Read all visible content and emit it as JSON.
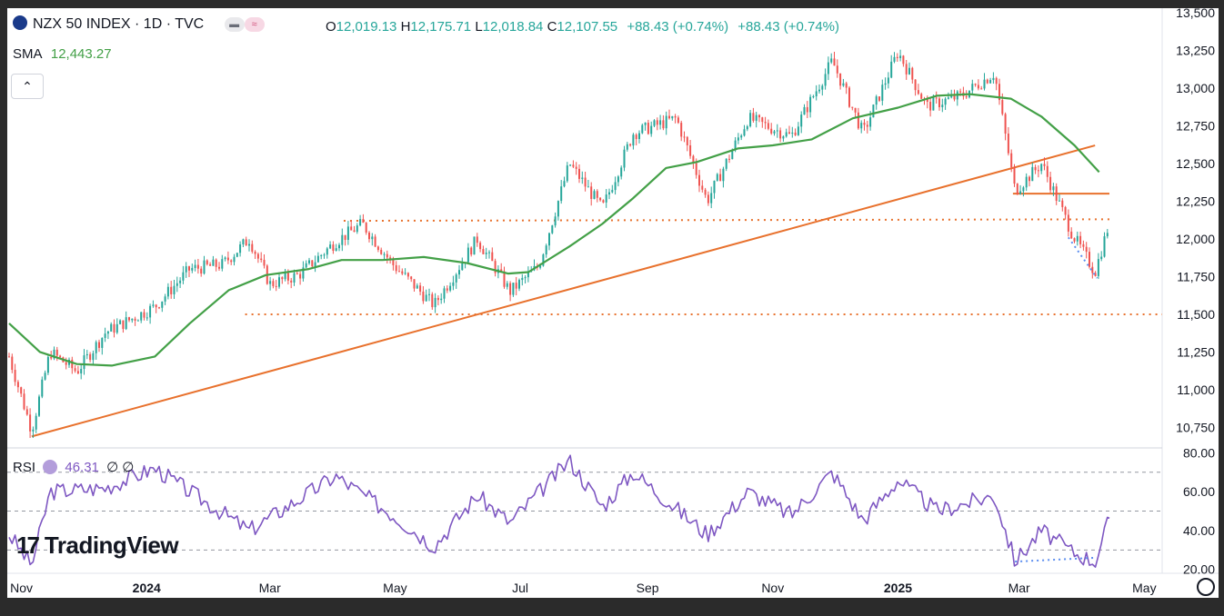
{
  "header": {
    "symbol": "NZX 50 INDEX · 1D · TVC",
    "open_label": "O",
    "open": "12,019.13",
    "high_label": "H",
    "high": "12,175.71",
    "low_label": "L",
    "low": "12,018.84",
    "close_label": "C",
    "close": "12,107.55",
    "change": "+88.43 (+0.74%)",
    "change2": "+88.43 (+0.74%)",
    "sma_label": "SMA",
    "sma_value": "12,443.27",
    "rsi_label": "RSI",
    "rsi_value": "46.31",
    "rsi_extra": "∅ ∅",
    "collapse_glyph": "⌃"
  },
  "logo": {
    "text": "TradingView",
    "mark": "17"
  },
  "colors": {
    "up": "#26a69a",
    "down": "#ef5350",
    "sma": "#43a047",
    "trend": "#e8712d",
    "rsi": "#7e57c2",
    "divergence": "#5b8def"
  },
  "chart_data": [
    {
      "type": "candlestick",
      "title": "NZX 50 INDEX · 1D · TVC",
      "x_ticks": [
        "Nov",
        "2024",
        "Mar",
        "May",
        "Jul",
        "Sep",
        "Nov",
        "2025",
        "Mar",
        "May"
      ],
      "y_ticks": [
        "10,750",
        "11,000",
        "11,250",
        "11,500",
        "11,750",
        "12,000",
        "12,250",
        "12,500",
        "12,750",
        "13,000",
        "13,250",
        "13,500"
      ],
      "ylim": [
        10620,
        13530
      ],
      "series": [
        {
          "name": "SMA",
          "indicator": "SMA",
          "values": [
            {
              "x": "2023-10-26",
              "y": 11440
            },
            {
              "x": "2023-11-10",
              "y": 11250
            },
            {
              "x": "2023-11-28",
              "y": 11170
            },
            {
              "x": "2023-12-15",
              "y": 11160
            },
            {
              "x": "2024-01-05",
              "y": 11220
            },
            {
              "x": "2024-01-22",
              "y": 11440
            },
            {
              "x": "2024-02-10",
              "y": 11660
            },
            {
              "x": "2024-02-28",
              "y": 11760
            },
            {
              "x": "2024-03-20",
              "y": 11800
            },
            {
              "x": "2024-04-05",
              "y": 11860
            },
            {
              "x": "2024-04-25",
              "y": 11860
            },
            {
              "x": "2024-05-15",
              "y": 11880
            },
            {
              "x": "2024-06-05",
              "y": 11840
            },
            {
              "x": "2024-06-25",
              "y": 11770
            },
            {
              "x": "2024-07-05",
              "y": 11780
            },
            {
              "x": "2024-07-25",
              "y": 11950
            },
            {
              "x": "2024-08-10",
              "y": 12100
            },
            {
              "x": "2024-08-25",
              "y": 12270
            },
            {
              "x": "2024-09-10",
              "y": 12470
            },
            {
              "x": "2024-09-25",
              "y": 12510
            },
            {
              "x": "2024-10-15",
              "y": 12600
            },
            {
              "x": "2024-11-01",
              "y": 12620
            },
            {
              "x": "2024-11-20",
              "y": 12660
            },
            {
              "x": "2024-12-10",
              "y": 12800
            },
            {
              "x": "2025-01-01",
              "y": 12870
            },
            {
              "x": "2025-01-20",
              "y": 12950
            },
            {
              "x": "2025-02-05",
              "y": 12960
            },
            {
              "x": "2025-02-25",
              "y": 12930
            },
            {
              "x": "2025-03-12",
              "y": 12810
            },
            {
              "x": "2025-03-28",
              "y": 12620
            },
            {
              "x": "2025-04-09",
              "y": 12443
            }
          ]
        },
        {
          "name": "Close",
          "values": [
            {
              "x": "2023-10-26",
              "y": 11220
            },
            {
              "x": "2023-11-06",
              "y": 10730
            },
            {
              "x": "2023-11-15",
              "y": 11250
            },
            {
              "x": "2023-11-28",
              "y": 11120
            },
            {
              "x": "2023-12-12",
              "y": 11380
            },
            {
              "x": "2024-01-05",
              "y": 11550
            },
            {
              "x": "2024-01-22",
              "y": 11800
            },
            {
              "x": "2024-02-07",
              "y": 11830
            },
            {
              "x": "2024-02-20",
              "y": 12000
            },
            {
              "x": "2024-03-01",
              "y": 11700
            },
            {
              "x": "2024-03-15",
              "y": 11760
            },
            {
              "x": "2024-04-02",
              "y": 11980
            },
            {
              "x": "2024-04-15",
              "y": 12100
            },
            {
              "x": "2024-04-30",
              "y": 11830
            },
            {
              "x": "2024-05-20",
              "y": 11560
            },
            {
              "x": "2024-06-10",
              "y": 12000
            },
            {
              "x": "2024-06-26",
              "y": 11650
            },
            {
              "x": "2024-07-10",
              "y": 11820
            },
            {
              "x": "2024-07-25",
              "y": 12500
            },
            {
              "x": "2024-08-10",
              "y": 12200
            },
            {
              "x": "2024-08-25",
              "y": 12700
            },
            {
              "x": "2024-09-15",
              "y": 12800
            },
            {
              "x": "2024-09-30",
              "y": 12250
            },
            {
              "x": "2024-10-20",
              "y": 12800
            },
            {
              "x": "2024-11-10",
              "y": 12680
            },
            {
              "x": "2024-11-30",
              "y": 13180
            },
            {
              "x": "2024-12-15",
              "y": 12700
            },
            {
              "x": "2025-01-01",
              "y": 13240
            },
            {
              "x": "2025-01-15",
              "y": 12880
            },
            {
              "x": "2025-02-01",
              "y": 12950
            },
            {
              "x": "2025-02-17",
              "y": 13100
            },
            {
              "x": "2025-02-27",
              "y": 12320
            },
            {
              "x": "2025-03-12",
              "y": 12500
            },
            {
              "x": "2025-03-27",
              "y": 12030
            },
            {
              "x": "2025-04-07",
              "y": 11780
            },
            {
              "x": "2025-04-14",
              "y": 12107
            }
          ]
        },
        {
          "name": "RSI",
          "indicator": "RSI",
          "ylim": [
            18,
            82
          ],
          "values": [
            {
              "x": "2023-10-26",
              "y": 38
            },
            {
              "x": "2023-11-06",
              "y": 22
            },
            {
              "x": "2023-11-15",
              "y": 60
            },
            {
              "x": "2023-12-12",
              "y": 62
            },
            {
              "x": "2024-01-05",
              "y": 72
            },
            {
              "x": "2024-01-22",
              "y": 60
            },
            {
              "x": "2024-02-20",
              "y": 40
            },
            {
              "x": "2024-03-15",
              "y": 56
            },
            {
              "x": "2024-04-02",
              "y": 68
            },
            {
              "x": "2024-04-30",
              "y": 48
            },
            {
              "x": "2024-05-20",
              "y": 32
            },
            {
              "x": "2024-06-10",
              "y": 58
            },
            {
              "x": "2024-06-26",
              "y": 44
            },
            {
              "x": "2024-07-25",
              "y": 76
            },
            {
              "x": "2024-08-10",
              "y": 52
            },
            {
              "x": "2024-08-25",
              "y": 70
            },
            {
              "x": "2024-09-30",
              "y": 38
            },
            {
              "x": "2024-10-20",
              "y": 60
            },
            {
              "x": "2024-11-10",
              "y": 48
            },
            {
              "x": "2024-11-30",
              "y": 70
            },
            {
              "x": "2024-12-15",
              "y": 45
            },
            {
              "x": "2025-01-01",
              "y": 66
            },
            {
              "x": "2025-01-20",
              "y": 50
            },
            {
              "x": "2025-02-17",
              "y": 58
            },
            {
              "x": "2025-02-27",
              "y": 24
            },
            {
              "x": "2025-03-12",
              "y": 40
            },
            {
              "x": "2025-03-27",
              "y": 29
            },
            {
              "x": "2025-04-07",
              "y": 24
            },
            {
              "x": "2025-04-14",
              "y": 46.31
            }
          ]
        }
      ],
      "rsi_ticks": [
        "20.00",
        "40.00",
        "60.00",
        "80.00"
      ],
      "rsi_levels": [
        30,
        50,
        70
      ]
    }
  ]
}
